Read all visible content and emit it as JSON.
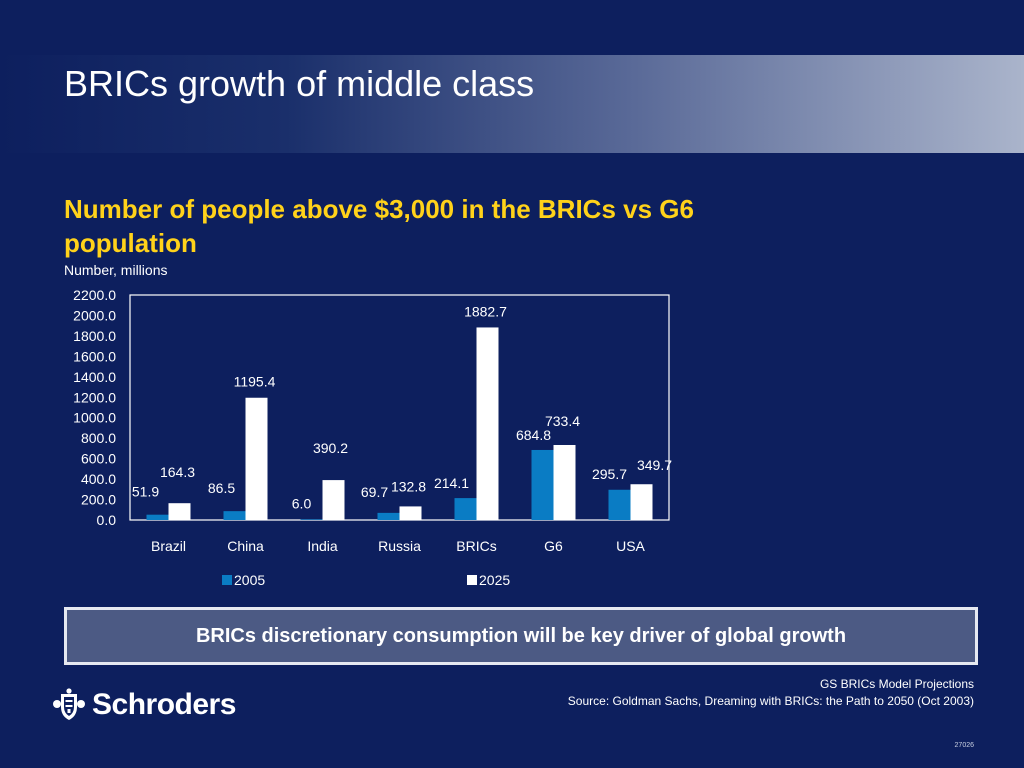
{
  "page": {
    "title": "BRICs growth of middle class",
    "chart_heading": "Number of people above $3,000 in the BRICs vs G6 population",
    "y_unit": "Number, millions",
    "callout": "BRICs discretionary consumption will be key driver of global growth",
    "source_line1": "GS BRICs Model Projections",
    "source_line2": "Source: Goldman Sachs, Dreaming with BRICs: the Path to 2050 (Oct 2003)",
    "logo_text": "Schroders",
    "slide_number": "27026"
  },
  "chart_data": {
    "type": "bar",
    "categories": [
      "Brazil",
      "China",
      "India",
      "Russia",
      "BRICs",
      "G6",
      "USA"
    ],
    "series": [
      {
        "name": "2005",
        "values": [
          51.9,
          86.5,
          6.0,
          69.7,
          214.1,
          684.8,
          295.7
        ],
        "color": "#0a7cc4"
      },
      {
        "name": "2025",
        "values": [
          164.3,
          1195.4,
          390.2,
          132.8,
          1882.7,
          733.4,
          349.7
        ],
        "color": "#ffffff"
      }
    ],
    "value_labels": [
      [
        "51.9",
        "86.5",
        "6.0",
        "69.7",
        "214.1",
        "684.8",
        "295.7"
      ],
      [
        "164.3",
        "1195.4",
        "390.2",
        "132.8",
        "1882.7",
        "733.4",
        "349.7"
      ]
    ],
    "yticks": [
      0,
      200,
      400,
      600,
      800,
      1000,
      1200,
      1400,
      1600,
      1800,
      2000,
      2200
    ],
    "ytick_labels": [
      "0.0",
      "200.0",
      "400.0",
      "600.0",
      "800.0",
      "1000.0",
      "1200.0",
      "1400.0",
      "1600.0",
      "1800.0",
      "2000.0",
      "2200.0"
    ],
    "ylim": [
      0,
      2200
    ],
    "legend_position": "bottom",
    "grid": false
  }
}
